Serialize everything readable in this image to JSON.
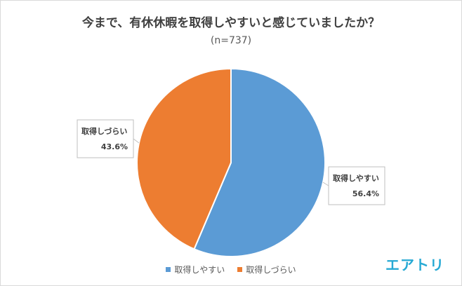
{
  "chart_data": {
    "type": "pie",
    "title": "今まで、有休休暇を取得しやすいと感じていましたか？",
    "subtitle": "(n=737)",
    "slices": [
      {
        "label": "取得しやすい",
        "value": 56.4,
        "display": "56.4%",
        "color": "#5b9bd5"
      },
      {
        "label": "取得しづらい",
        "value": 43.6,
        "display": "43.6%",
        "color": "#ed7d31"
      }
    ],
    "legend": {
      "position": "bottom"
    }
  },
  "logo": {
    "text": "エアトリ"
  }
}
